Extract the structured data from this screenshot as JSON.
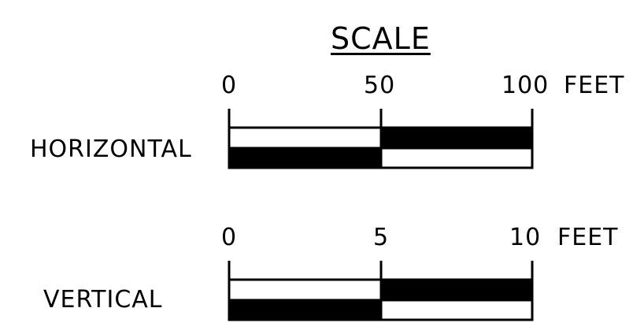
{
  "title": "SCALE",
  "scales": [
    {
      "label": "HORIZONTAL",
      "ticks": [
        "0",
        "50",
        "100"
      ],
      "unit": "FEET",
      "fractions": [
        0,
        0.5,
        1
      ]
    },
    {
      "label": "VERTICAL",
      "ticks": [
        "0",
        "5",
        "10"
      ],
      "unit": "FEET",
      "fractions": [
        0,
        0.5,
        1
      ]
    }
  ]
}
